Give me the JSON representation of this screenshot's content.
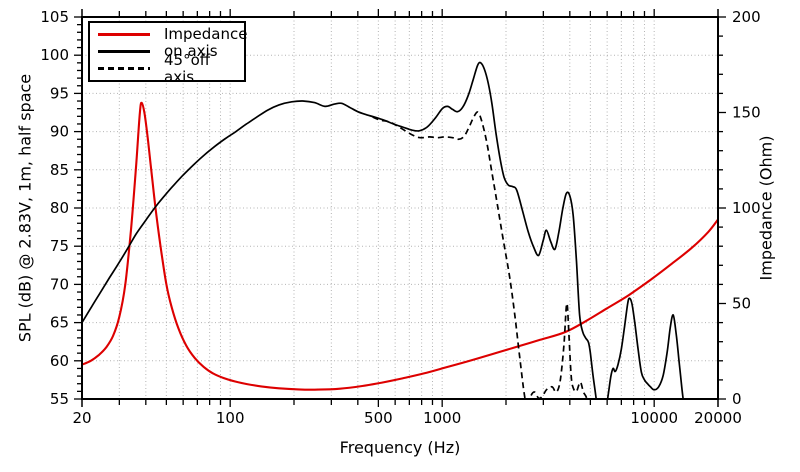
{
  "figure": {
    "xlabel": "Frequency (Hz)",
    "ylabel_left": "SPL (dB) @ 2.83V, 1m, half space",
    "ylabel_right": "Impedance (Ohm)"
  },
  "legend": {
    "items": [
      {
        "label": "Impedance",
        "color": "#dd0000",
        "style": "solid"
      },
      {
        "label": "on axis",
        "color": "#000000",
        "style": "solid"
      },
      {
        "label": "45°off axis",
        "color": "#000000",
        "style": "dashed"
      }
    ]
  },
  "colors": {
    "impedance": "#dd0000",
    "spl": "#000000",
    "grid": "#b4b4b4",
    "frame": "#000000"
  },
  "chart_data": {
    "type": "line",
    "title": "",
    "xlabel": "Frequency (Hz)",
    "ylabel_left": "SPL (dB) @ 2.83V, 1m, half space",
    "ylabel_right": "Impedance (Ohm)",
    "x_scale": "log",
    "xlim": [
      20,
      20000
    ],
    "ylim_left": [
      55,
      105
    ],
    "ylim_right": [
      0,
      200
    ],
    "x_ticks_labeled": [
      20,
      100,
      500,
      1000,
      10000,
      20000
    ],
    "y_ticks_left": [
      55,
      60,
      65,
      70,
      75,
      80,
      85,
      90,
      95,
      100,
      105
    ],
    "y_ticks_right": [
      0,
      50,
      100,
      150,
      200
    ],
    "grid": true,
    "legend_position": "top-left",
    "series": [
      {
        "name": "Impedance",
        "slug": "impedance",
        "axis": "right",
        "unit": "Ohm",
        "color": "#dd0000",
        "style": "solid",
        "points": [
          [
            20,
            18
          ],
          [
            22,
            20
          ],
          [
            24,
            23
          ],
          [
            26,
            27
          ],
          [
            28,
            33
          ],
          [
            30,
            43
          ],
          [
            32,
            60
          ],
          [
            34,
            88
          ],
          [
            36,
            122
          ],
          [
            37.5,
            150
          ],
          [
            38.3,
            155
          ],
          [
            39.5,
            149
          ],
          [
            41,
            135
          ],
          [
            43,
            114
          ],
          [
            45,
            95
          ],
          [
            47.5,
            76
          ],
          [
            50,
            60
          ],
          [
            53,
            48
          ],
          [
            57,
            37
          ],
          [
            62,
            28
          ],
          [
            68,
            21.5
          ],
          [
            75,
            16.8
          ],
          [
            83,
            13.4
          ],
          [
            93,
            11
          ],
          [
            105,
            9.2
          ],
          [
            120,
            7.8
          ],
          [
            140,
            6.6
          ],
          [
            170,
            5.6
          ],
          [
            210,
            5
          ],
          [
            260,
            4.9
          ],
          [
            330,
            5.4
          ],
          [
            420,
            6.8
          ],
          [
            520,
            8.6
          ],
          [
            650,
            10.8
          ],
          [
            820,
            13.4
          ],
          [
            1000,
            16
          ],
          [
            1300,
            19.5
          ],
          [
            1700,
            23.3
          ],
          [
            2200,
            27
          ],
          [
            2900,
            31
          ],
          [
            3800,
            35
          ],
          [
            4800,
            41
          ],
          [
            6000,
            47.5
          ],
          [
            7500,
            54
          ],
          [
            9500,
            62
          ],
          [
            12000,
            70.5
          ],
          [
            15000,
            79
          ],
          [
            18000,
            87.5
          ],
          [
            20000,
            94
          ]
        ]
      },
      {
        "name": "on axis",
        "slug": "on-axis",
        "axis": "left",
        "unit": "dB",
        "color": "#000000",
        "style": "solid",
        "points": [
          [
            20,
            65
          ],
          [
            22,
            66.9
          ],
          [
            24,
            68.6
          ],
          [
            27,
            70.9
          ],
          [
            30,
            72.9
          ],
          [
            33,
            74.8
          ],
          [
            36,
            76.6
          ],
          [
            40,
            78.4
          ],
          [
            44,
            80
          ],
          [
            48,
            81.3
          ],
          [
            53,
            82.7
          ],
          [
            60,
            84.3
          ],
          [
            68,
            85.8
          ],
          [
            76,
            87
          ],
          [
            85,
            88.1
          ],
          [
            95,
            89.1
          ],
          [
            105,
            89.9
          ],
          [
            118,
            90.9
          ],
          [
            132,
            91.8
          ],
          [
            150,
            92.8
          ],
          [
            170,
            93.5
          ],
          [
            195,
            93.9
          ],
          [
            220,
            94
          ],
          [
            250,
            93.8
          ],
          [
            280,
            93.3
          ],
          [
            310,
            93.6
          ],
          [
            335,
            93.7
          ],
          [
            365,
            93.2
          ],
          [
            400,
            92.6
          ],
          [
            440,
            92.2
          ],
          [
            480,
            91.9
          ],
          [
            530,
            91.5
          ],
          [
            590,
            91
          ],
          [
            650,
            90.6
          ],
          [
            720,
            90.2
          ],
          [
            780,
            90.1
          ],
          [
            850,
            90.6
          ],
          [
            930,
            91.8
          ],
          [
            1000,
            93
          ],
          [
            1060,
            93.3
          ],
          [
            1120,
            92.9
          ],
          [
            1180,
            92.6
          ],
          [
            1250,
            93.2
          ],
          [
            1330,
            94.8
          ],
          [
            1400,
            96.8
          ],
          [
            1470,
            98.7
          ],
          [
            1520,
            99
          ],
          [
            1580,
            98.2
          ],
          [
            1650,
            96.3
          ],
          [
            1720,
            93.5
          ],
          [
            1800,
            89.5
          ],
          [
            1880,
            86.3
          ],
          [
            1960,
            84
          ],
          [
            2050,
            83
          ],
          [
            2150,
            82.8
          ],
          [
            2250,
            82.3
          ],
          [
            2400,
            79.5
          ],
          [
            2550,
            76.8
          ],
          [
            2700,
            74.9
          ],
          [
            2850,
            73.8
          ],
          [
            3000,
            75.8
          ],
          [
            3100,
            77.1
          ],
          [
            3250,
            75.6
          ],
          [
            3400,
            74.6
          ],
          [
            3550,
            76.8
          ],
          [
            3700,
            79.8
          ],
          [
            3850,
            81.9
          ],
          [
            4000,
            81.6
          ],
          [
            4150,
            79
          ],
          [
            4300,
            73
          ],
          [
            4450,
            66
          ],
          [
            4600,
            63.8
          ],
          [
            4750,
            63
          ],
          [
            4900,
            62.4
          ],
          [
            5000,
            61
          ],
          [
            5150,
            58
          ],
          [
            5300,
            55.5
          ],
          [
            5450,
            53
          ],
          [
            5700,
            52
          ],
          [
            5950,
            54
          ],
          [
            6100,
            56
          ],
          [
            6250,
            58
          ],
          [
            6400,
            59
          ],
          [
            6550,
            58.6
          ],
          [
            6750,
            59.5
          ],
          [
            7000,
            61.5
          ],
          [
            7250,
            64.5
          ],
          [
            7500,
            67.5
          ],
          [
            7650,
            68.2
          ],
          [
            7850,
            67.5
          ],
          [
            8100,
            65
          ],
          [
            8400,
            61.5
          ],
          [
            8700,
            58.5
          ],
          [
            9000,
            57.5
          ],
          [
            9300,
            57
          ],
          [
            9600,
            56.6
          ],
          [
            10000,
            56.2
          ],
          [
            10500,
            56.6
          ],
          [
            11000,
            58
          ],
          [
            11500,
            61
          ],
          [
            11900,
            64.3
          ],
          [
            12300,
            66
          ],
          [
            12700,
            63.5
          ],
          [
            13100,
            60
          ],
          [
            13500,
            56.5
          ],
          [
            13900,
            53.5
          ]
        ]
      },
      {
        "name": "45°off axis",
        "slug": "off-axis-45",
        "axis": "left",
        "unit": "dB",
        "color": "#000000",
        "style": "dashed",
        "points": [
          [
            470,
            91.9
          ],
          [
            510,
            91.5
          ],
          [
            560,
            91.3
          ],
          [
            610,
            90.8
          ],
          [
            670,
            90.1
          ],
          [
            730,
            89.5
          ],
          [
            790,
            89.2
          ],
          [
            870,
            89.3
          ],
          [
            950,
            89.2
          ],
          [
            1030,
            89.3
          ],
          [
            1120,
            89.2
          ],
          [
            1200,
            89
          ],
          [
            1270,
            89.4
          ],
          [
            1340,
            90.6
          ],
          [
            1420,
            92.1
          ],
          [
            1480,
            92.5
          ],
          [
            1550,
            91
          ],
          [
            1630,
            88.3
          ],
          [
            1720,
            84.5
          ],
          [
            1820,
            80.5
          ],
          [
            1950,
            75.5
          ],
          [
            2080,
            71
          ],
          [
            2200,
            66
          ],
          [
            2320,
            60.5
          ],
          [
            2430,
            56
          ],
          [
            2520,
            53.8
          ],
          [
            2620,
            55.4
          ],
          [
            2730,
            55.9
          ],
          [
            2850,
            55.1
          ],
          [
            2980,
            55.4
          ],
          [
            3100,
            56.2
          ],
          [
            3300,
            56.6
          ],
          [
            3450,
            55.9
          ],
          [
            3600,
            57.3
          ],
          [
            3750,
            62
          ],
          [
            3870,
            67.5
          ],
          [
            3960,
            63.5
          ],
          [
            4060,
            58
          ],
          [
            4160,
            56.4
          ],
          [
            4300,
            56
          ],
          [
            4480,
            57.2
          ],
          [
            4640,
            55.9
          ],
          [
            4800,
            55.1
          ],
          [
            4920,
            53
          ]
        ]
      }
    ]
  }
}
